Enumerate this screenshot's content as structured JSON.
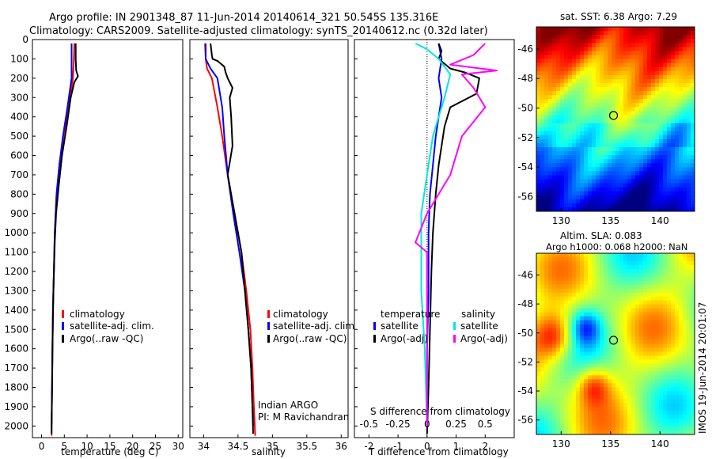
{
  "title": {
    "line1": "Argo profile: IN 2901348_87 11-Jun-2014 20140614_321 50.545S 135.316E",
    "line2": "Climatology: CARS2009. Satellite-adjusted climatology: synTS_20140612.nc (0.32d later)"
  },
  "colors": {
    "climatology": "#ff0000",
    "satellite": "#0000ff",
    "argo": "#000000",
    "sat_salinity": "#00e5e5",
    "argo_salinity": "#ff00ff"
  },
  "credit": {
    "line1": "Indian ARGO",
    "line2": "PI: M Ravichandran"
  },
  "watermark": "IMOS 19-Jun-2014 20:01:07",
  "chart_data": [
    {
      "type": "line",
      "xlabel": "temperature (deg C)",
      "ylabel": "",
      "xlim": [
        -2,
        31
      ],
      "ylim": [
        2060,
        0
      ],
      "xticks": [
        0,
        5,
        10,
        15,
        20,
        25,
        30
      ],
      "yticks": [
        0,
        100,
        200,
        300,
        400,
        500,
        600,
        700,
        800,
        900,
        1000,
        1100,
        1200,
        1300,
        1400,
        1500,
        1600,
        1700,
        1800,
        1900,
        2000
      ],
      "legend_position": "lower-center",
      "legend": [
        "climatology",
        "satellite-adj. clim.",
        "Argo(..raw -QC)"
      ],
      "series": [
        {
          "name": "climatology",
          "color": "#ff0000",
          "points": [
            [
              7.2,
              20
            ],
            [
              7.1,
              100
            ],
            [
              6.9,
              200
            ],
            [
              6.0,
              350
            ],
            [
              4.8,
              500
            ],
            [
              3.9,
              650
            ],
            [
              3.3,
              800
            ],
            [
              2.9,
              1000
            ],
            [
              2.7,
              1200
            ],
            [
              2.5,
              1400
            ],
            [
              2.4,
              1600
            ],
            [
              2.3,
              1800
            ],
            [
              2.2,
              2000
            ],
            [
              2.2,
              2050
            ]
          ]
        },
        {
          "name": "satellite-adj. clim.",
          "color": "#0000ff",
          "points": [
            [
              6.6,
              20
            ],
            [
              6.6,
              100
            ],
            [
              6.6,
              200
            ],
            [
              5.7,
              350
            ],
            [
              4.7,
              500
            ],
            [
              3.9,
              650
            ],
            [
              3.3,
              800
            ],
            [
              2.9,
              1000
            ],
            [
              2.7,
              1200
            ],
            [
              2.5,
              1400
            ],
            [
              2.4,
              1600
            ],
            [
              2.3,
              1800
            ],
            [
              2.2,
              2000
            ]
          ]
        },
        {
          "name": "Argo(..raw -QC)",
          "color": "#000000",
          "points": [
            [
              7.5,
              20
            ],
            [
              7.5,
              100
            ],
            [
              7.6,
              160
            ],
            [
              8.0,
              190
            ],
            [
              7.2,
              220
            ],
            [
              6.4,
              300
            ],
            [
              5.5,
              450
            ],
            [
              4.5,
              600
            ],
            [
              3.8,
              750
            ],
            [
              3.2,
              900
            ],
            [
              2.9,
              1050
            ],
            [
              2.6,
              1300
            ],
            [
              2.4,
              1600
            ],
            [
              2.3,
              1800
            ],
            [
              2.2,
              2000
            ],
            [
              2.2,
              2040
            ]
          ]
        }
      ]
    },
    {
      "type": "line",
      "xlabel": "salinity",
      "ylabel": "",
      "xlim": [
        33.8,
        36.1
      ],
      "ylim": [
        2060,
        0
      ],
      "xticks": [
        34,
        34.5,
        35,
        35.5,
        36
      ],
      "legend_position": "lower-center",
      "legend": [
        "climatology",
        "satellite-adj. clim.",
        "Argo(..raw -QC)"
      ],
      "series": [
        {
          "name": "climatology",
          "color": "#ff0000",
          "points": [
            [
              34.02,
              20
            ],
            [
              34.03,
              100
            ],
            [
              34.05,
              150
            ],
            [
              34.12,
              200
            ],
            [
              34.2,
              350
            ],
            [
              34.27,
              500
            ],
            [
              34.35,
              700
            ],
            [
              34.45,
              900
            ],
            [
              34.55,
              1100
            ],
            [
              34.62,
              1300
            ],
            [
              34.68,
              1500
            ],
            [
              34.71,
              1700
            ],
            [
              34.73,
              1900
            ],
            [
              34.75,
              2050
            ]
          ]
        },
        {
          "name": "satellite-adj. clim.",
          "color": "#0000ff",
          "points": [
            [
              34.03,
              20
            ],
            [
              34.03,
              100
            ],
            [
              34.1,
              150
            ],
            [
              34.2,
              200
            ],
            [
              34.27,
              350
            ],
            [
              34.3,
              500
            ],
            [
              34.35,
              700
            ],
            [
              34.43,
              900
            ],
            [
              34.52,
              1100
            ],
            [
              34.6,
              1300
            ],
            [
              34.65,
              1500
            ],
            [
              34.69,
              1700
            ],
            [
              34.71,
              1900
            ],
            [
              34.72,
              2000
            ]
          ]
        },
        {
          "name": "Argo(..raw -QC)",
          "color": "#000000",
          "points": [
            [
              34.1,
              20
            ],
            [
              34.12,
              80
            ],
            [
              34.13,
              100
            ],
            [
              34.2,
              110
            ],
            [
              34.3,
              140
            ],
            [
              34.32,
              170
            ],
            [
              34.35,
              200
            ],
            [
              34.42,
              250
            ],
            [
              34.38,
              300
            ],
            [
              34.4,
              400
            ],
            [
              34.42,
              550
            ],
            [
              34.35,
              700
            ],
            [
              34.45,
              900
            ],
            [
              34.55,
              1100
            ],
            [
              34.6,
              1300
            ],
            [
              34.65,
              1500
            ],
            [
              34.69,
              1700
            ],
            [
              34.71,
              1900
            ],
            [
              34.72,
              2040
            ]
          ]
        }
      ]
    },
    {
      "type": "line",
      "xlabel": "T difference from climatology",
      "x2label": "S difference from climatology",
      "xlim": [
        -2.5,
        3
      ],
      "ylim": [
        2060,
        0
      ],
      "xticks": [
        -2,
        -1,
        0,
        1,
        2
      ],
      "x2ticks": [
        -0.5,
        -0.25,
        0,
        0.25,
        0.5
      ],
      "x2tick_labels": [
        "-0.5",
        "-0.25",
        "0",
        "0.25",
        "0.5"
      ],
      "legend_temperature": {
        "header": "temperature",
        "items": [
          "satellite",
          "Argo(-adj)"
        ]
      },
      "legend_salinity": {
        "header": "salinity",
        "items": [
          "satellite",
          "Argo(-adj)"
        ]
      },
      "series": [
        {
          "name": "temperature satellite",
          "color": "#0000ff",
          "points": [
            [
              0.4,
              20
            ],
            [
              0.5,
              100
            ],
            [
              0.4,
              200
            ],
            [
              0.5,
              300
            ],
            [
              0.4,
              400
            ],
            [
              0.3,
              500
            ],
            [
              0.2,
              650
            ],
            [
              0.1,
              800
            ],
            [
              0.05,
              1000
            ],
            [
              0.05,
              1300
            ],
            [
              0.0,
              1600
            ],
            [
              0.0,
              2000
            ]
          ]
        },
        {
          "name": "temperature Argo(-adj)",
          "color": "#000000",
          "points": [
            [
              0.4,
              20
            ],
            [
              0.5,
              60
            ],
            [
              0.4,
              100
            ],
            [
              0.8,
              150
            ],
            [
              1.3,
              170
            ],
            [
              1.8,
              200
            ],
            [
              1.7,
              280
            ],
            [
              0.8,
              350
            ],
            [
              0.6,
              450
            ],
            [
              0.5,
              550
            ],
            [
              0.4,
              650
            ],
            [
              0.3,
              800
            ],
            [
              0.2,
              1000
            ],
            [
              0.15,
              1200
            ],
            [
              0.1,
              1500
            ],
            [
              0.05,
              1800
            ],
            [
              0.0,
              2040
            ]
          ]
        },
        {
          "name": "salinity satellite",
          "color": "#00e5e5",
          "points": [
            [
              -0.1,
              20
            ],
            [
              0.0,
              50
            ],
            [
              0.1,
              100
            ],
            [
              0.2,
              180
            ],
            [
              0.15,
              300
            ],
            [
              0.05,
              500
            ],
            [
              0.0,
              700
            ],
            [
              -0.05,
              900
            ],
            [
              -0.05,
              1100
            ],
            [
              -0.05,
              1300
            ],
            [
              -0.02,
              1600
            ],
            [
              0.0,
              2000
            ]
          ]
        },
        {
          "name": "salinity Argo(-adj)",
          "color": "#ff00ff",
          "points": [
            [
              0.5,
              20
            ],
            [
              0.4,
              80
            ],
            [
              0.2,
              130
            ],
            [
              0.6,
              160
            ],
            [
              0.3,
              180
            ],
            [
              0.4,
              250
            ],
            [
              0.5,
              350
            ],
            [
              0.3,
              500
            ],
            [
              0.2,
              700
            ],
            [
              0.0,
              900
            ],
            [
              -0.1,
              1050
            ],
            [
              0.0,
              1100
            ],
            [
              0.0,
              1300
            ],
            [
              0.0,
              1600
            ],
            [
              0.0,
              2000
            ]
          ]
        }
      ]
    },
    {
      "type": "heatmap",
      "title": "sat. SST: 6.38 Argo: 7.29",
      "xlim": [
        127.5,
        143.5
      ],
      "ylim": [
        -57,
        -44.5
      ],
      "xticks": [
        130,
        135,
        140
      ],
      "yticks": [
        -46,
        -48,
        -50,
        -52,
        -54,
        -56
      ],
      "marker": {
        "lon": 135.3,
        "lat": -50.5
      }
    },
    {
      "type": "heatmap",
      "title_line1": "Altim. SLA: 0.083",
      "title_line2": "Argo h1000: 0.068 h2000: NaN",
      "xlim": [
        127.5,
        143.5
      ],
      "ylim": [
        -57,
        -44.5
      ],
      "xticks": [
        130,
        135,
        140
      ],
      "yticks": [
        -46,
        -48,
        -50,
        -52,
        -54,
        -56
      ],
      "marker": {
        "lon": 135.3,
        "lat": -50.5
      }
    }
  ]
}
